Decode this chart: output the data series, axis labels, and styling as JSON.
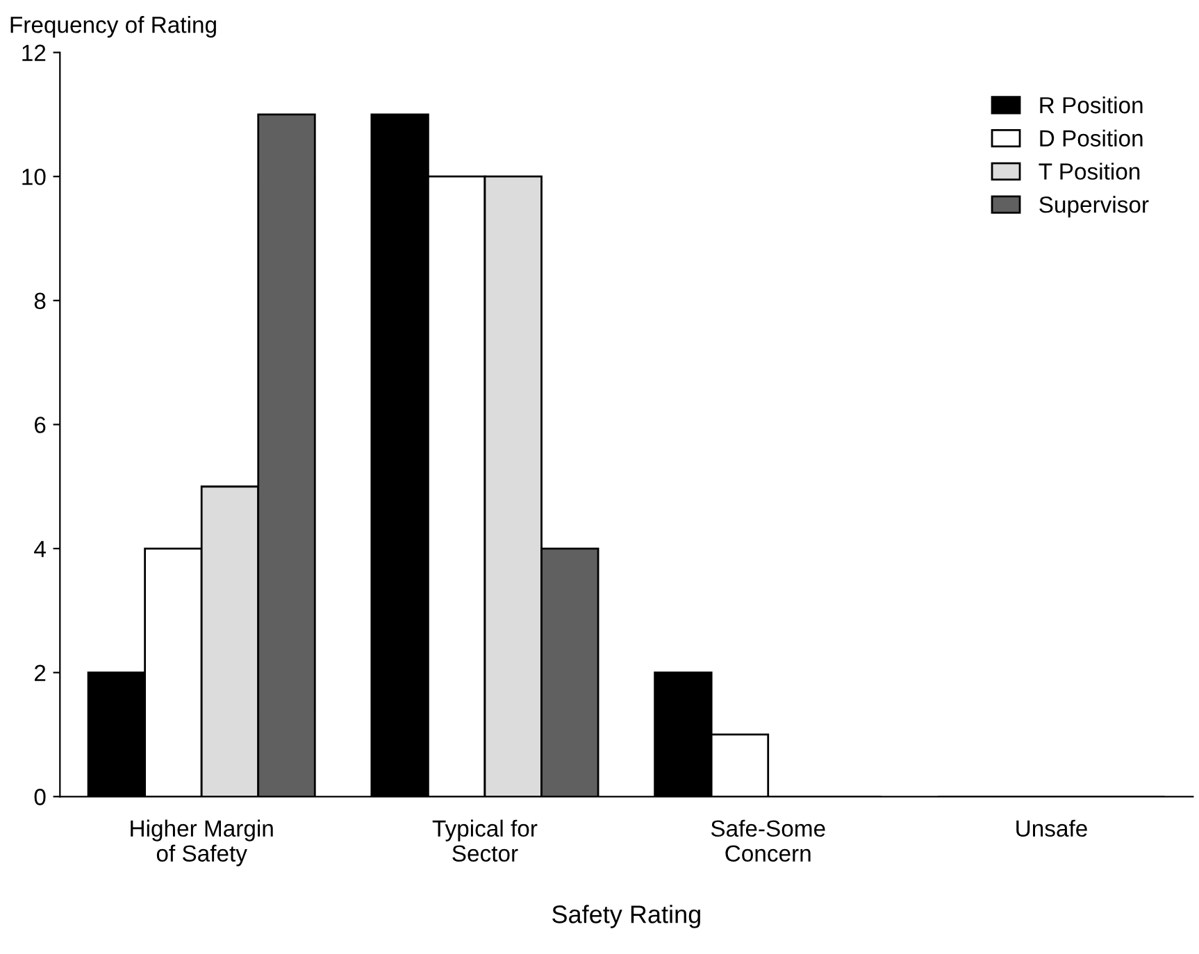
{
  "chart_data": {
    "type": "bar",
    "xlabel": "Safety Rating",
    "ylabel": "Frequency of Rating",
    "categories": [
      "Higher Margin\nof Safety",
      "Typical for\nSector",
      "Safe-Some\nConcern",
      "Unsafe"
    ],
    "series": [
      {
        "name": "R Position",
        "color": "#000000",
        "values": [
          2,
          11,
          2,
          0
        ]
      },
      {
        "name": "D Position",
        "color": "#ffffff",
        "values": [
          4,
          10,
          1,
          0
        ]
      },
      {
        "name": "T Position",
        "color": "#dcdcdc",
        "values": [
          5,
          10,
          0,
          0
        ]
      },
      {
        "name": "Supervisor",
        "color": "#606060",
        "values": [
          11,
          4,
          0,
          0
        ]
      }
    ],
    "ylim": [
      0,
      12
    ],
    "yticks": [
      0,
      2,
      4,
      6,
      8,
      10,
      12
    ],
    "grid": false,
    "legend": "top right"
  }
}
